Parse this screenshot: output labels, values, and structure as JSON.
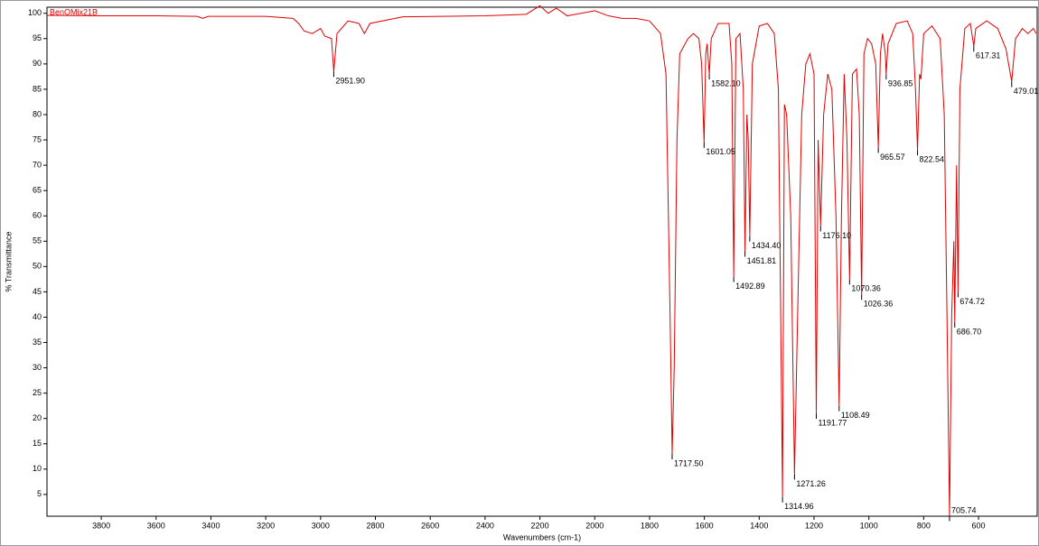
{
  "chart_data": {
    "type": "line",
    "title": "BenOMix21B",
    "x_label": "Wavenumbers (cm-1)",
    "y_label": "% Transmittance",
    "xlim": [
      3998,
      386
    ],
    "ylim": [
      0.7,
      101.2
    ],
    "xticks": [
      3800,
      3600,
      3400,
      3200,
      3000,
      2800,
      2600,
      2400,
      2200,
      2000,
      1800,
      1600,
      1400,
      1200,
      1000,
      800,
      600
    ],
    "yticks": [
      5,
      10,
      15,
      20,
      25,
      30,
      35,
      40,
      45,
      50,
      55,
      60,
      65,
      70,
      75,
      80,
      85,
      90,
      95,
      100
    ],
    "series": [
      {
        "name": "BenOMix21B",
        "color": "#e00000",
        "x": [
          3998,
          3800,
          3600,
          3450,
          3430,
          3410,
          3200,
          3100,
          3080,
          3060,
          3030,
          3000,
          2985,
          2960,
          2951.9,
          2940,
          2900,
          2860,
          2840,
          2820,
          2700,
          2400,
          2250,
          2200,
          2170,
          2140,
          2100,
          2050,
          2000,
          1950,
          1900,
          1850,
          1800,
          1760,
          1740,
          1725,
          1717.5,
          1710,
          1700,
          1690,
          1660,
          1640,
          1620,
          1610,
          1601.05,
          1595,
          1590,
          1582.1,
          1575,
          1550,
          1510,
          1500,
          1492.89,
          1485,
          1470,
          1458,
          1451.81,
          1445,
          1440,
          1434.4,
          1425,
          1400,
          1370,
          1345,
          1330,
          1314.96,
          1308,
          1300,
          1285,
          1271.26,
          1260,
          1245,
          1230,
          1215,
          1200,
          1191.77,
          1185,
          1176.1,
          1165,
          1150,
          1135,
          1120,
          1108.49,
          1100,
          1090,
          1080,
          1070.36,
          1060,
          1045,
          1035,
          1026.36,
          1018,
          1005,
          990,
          975,
          965.57,
          958,
          950,
          940,
          936.85,
          930,
          900,
          860,
          840,
          830,
          822.54,
          815,
          810,
          800,
          770,
          740,
          725,
          715,
          705.74,
          698,
          690,
          686.7,
          680,
          674.72,
          668,
          650,
          630,
          617.31,
          610,
          570,
          530,
          500,
          479.01,
          465,
          440,
          420,
          400,
          390
        ],
        "values": [
          99.6,
          99.5,
          99.5,
          99.4,
          99,
          99.4,
          99.4,
          99,
          98,
          96.5,
          96,
          97,
          95.5,
          95,
          88.5,
          96,
          98.5,
          98,
          96,
          98,
          99.3,
          99.5,
          99.8,
          101.5,
          100,
          101,
          99.5,
          100,
          100.5,
          99.5,
          99,
          99,
          98.5,
          96,
          88,
          40,
          13,
          30,
          75,
          92,
          95,
          96,
          95,
          90,
          74.5,
          92,
          94,
          88,
          95,
          98,
          98,
          90,
          48,
          95,
          96,
          85,
          53,
          80,
          75,
          56,
          90,
          97.5,
          98,
          96,
          85,
          4.5,
          82,
          80,
          60,
          9,
          40,
          80,
          90,
          92,
          88,
          21,
          75,
          58,
          80,
          88,
          85,
          60,
          22.5,
          60,
          88,
          75,
          47.5,
          88,
          89,
          80,
          44.5,
          92,
          95,
          94,
          90,
          73.5,
          92,
          96,
          92,
          88,
          94,
          98,
          98.5,
          96,
          85,
          73,
          88,
          87,
          96,
          97.5,
          95,
          80,
          40,
          0.8,
          40,
          55,
          39,
          70,
          45,
          85,
          97,
          98,
          93.5,
          97,
          98.5,
          97,
          93,
          86.5,
          95,
          97,
          96,
          97,
          96
        ]
      }
    ],
    "annotations": [
      {
        "label": "2951.90",
        "x": 2951.9,
        "y": 88.5
      },
      {
        "label": "1717.50",
        "x": 1717.5,
        "y": 13
      },
      {
        "label": "1601.05",
        "x": 1601.05,
        "y": 74.5
      },
      {
        "label": "1582.10",
        "x": 1582.1,
        "y": 88
      },
      {
        "label": "1492.89",
        "x": 1492.89,
        "y": 48
      },
      {
        "label": "1451.81",
        "x": 1451.81,
        "y": 53
      },
      {
        "label": "1434.40",
        "x": 1434.4,
        "y": 56
      },
      {
        "label": "1314.96",
        "x": 1314.96,
        "y": 4.5
      },
      {
        "label": "1271.26",
        "x": 1271.26,
        "y": 9
      },
      {
        "label": "1191.77",
        "x": 1191.77,
        "y": 21
      },
      {
        "label": "1176.10",
        "x": 1176.1,
        "y": 58
      },
      {
        "label": "1108.49",
        "x": 1108.49,
        "y": 22.5
      },
      {
        "label": "1070.36",
        "x": 1070.36,
        "y": 47.5
      },
      {
        "label": "1026.36",
        "x": 1026.36,
        "y": 44.5
      },
      {
        "label": "965.57",
        "x": 965.57,
        "y": 73.5
      },
      {
        "label": "936.85",
        "x": 936.85,
        "y": 88
      },
      {
        "label": "822.54",
        "x": 822.54,
        "y": 73
      },
      {
        "label": "705.74",
        "x": 705.74,
        "y": 0.8
      },
      {
        "label": "686.70",
        "x": 686.7,
        "y": 39
      },
      {
        "label": "674.72",
        "x": 674.72,
        "y": 45
      },
      {
        "label": "617.31",
        "x": 617.31,
        "y": 93.5
      },
      {
        "label": "479.01",
        "x": 479.01,
        "y": 86.5
      }
    ]
  }
}
